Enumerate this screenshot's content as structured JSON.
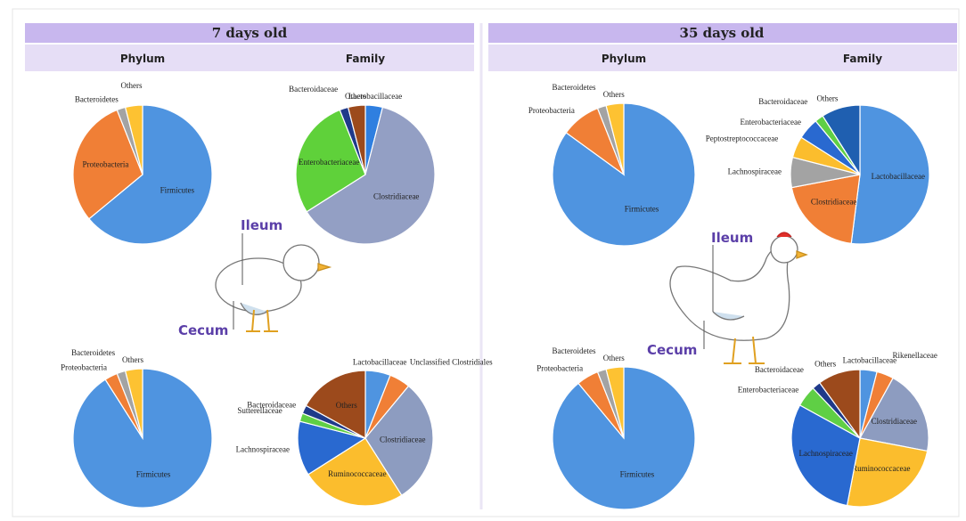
{
  "panels": [
    {
      "title": "7 days old",
      "columns": [
        "Phylum",
        "Family"
      ],
      "ileum": "Ileum",
      "cecum": "Cecum"
    },
    {
      "title": "35 days old",
      "columns": [
        "Phylum",
        "Family"
      ],
      "ileum": "Ileum",
      "cecum": "Cecum"
    }
  ],
  "chart_data": [
    {
      "type": "pie",
      "categories": [
        "Firmicutes",
        "Proteobacteria",
        "Bacteroidetes",
        "Others"
      ],
      "values": [
        64,
        30,
        2,
        4
      ],
      "colors": [
        "#4f94e0",
        "#f07f36",
        "#a3a3a3",
        "#fdc232"
      ]
    },
    {
      "type": "pie",
      "categories": [
        "Lactobacillaceae",
        "Clostridiaceae",
        "Enterobacteriaceae",
        "Bacteroidaceae",
        "Others"
      ],
      "values": [
        4,
        62,
        28,
        2,
        4
      ],
      "colors": [
        "#2f7fe0",
        "#939fc4",
        "#5fd13a",
        "#1f3a8a",
        "#9c4a1c"
      ]
    },
    {
      "type": "pie",
      "categories": [
        "Firmicutes",
        "Proteobacteria",
        "Bacteroidetes",
        "Others"
      ],
      "values": [
        91,
        3,
        2,
        4
      ],
      "colors": [
        "#4f94e0",
        "#f07f36",
        "#a3a3a3",
        "#fdc232"
      ]
    },
    {
      "type": "pie",
      "categories": [
        "Lactobacillaceae",
        "Unclassified Clostridiales",
        "Clostridiaceae",
        "Ruminococcaceae",
        "Lachnospiraceae",
        "Sutterellaceae",
        "Bacteroidaceae",
        "Others"
      ],
      "values": [
        6,
        5,
        30,
        25,
        13,
        2,
        2,
        17
      ],
      "colors": [
        "#4f94e0",
        "#f07f36",
        "#8d9cc0",
        "#fbbd2d",
        "#2969d0",
        "#5fcf45",
        "#1f3a8a",
        "#9c4a1c"
      ]
    },
    {
      "type": "pie",
      "categories": [
        "Firmicutes",
        "Proteobacteria",
        "Bacteroidetes",
        "Others"
      ],
      "values": [
        85,
        9,
        2,
        4
      ],
      "colors": [
        "#4f94e0",
        "#f07f36",
        "#a3a3a3",
        "#fdc232"
      ]
    },
    {
      "type": "pie",
      "categories": [
        "Lactobacillaceae",
        "Clostridiaceae",
        "Lachnospiraceae",
        "Peptostreptococcaceae",
        "Enterobacteriaceae",
        "Bacteroidaceae",
        "Others"
      ],
      "values": [
        52,
        20,
        7,
        5,
        5,
        2,
        9
      ],
      "colors": [
        "#4f94e0",
        "#f07f36",
        "#a3a3a3",
        "#fbbd2d",
        "#2969d0",
        "#5fcf45",
        "#1f5fb0"
      ]
    },
    {
      "type": "pie",
      "categories": [
        "Firmicutes",
        "Proteobacteria",
        "Bacteroidetes",
        "Others"
      ],
      "values": [
        89,
        5,
        2,
        4
      ],
      "colors": [
        "#4f94e0",
        "#f07f36",
        "#a3a3a3",
        "#fdc232"
      ]
    },
    {
      "type": "pie",
      "categories": [
        "Lactobacillaceae",
        "Rikenellaceae",
        "Clostridiaceae",
        "Ruminococcaceae",
        "Lachnospiraceae",
        "Enterobacteriaceae",
        "Bacteroidaceae",
        "Others"
      ],
      "values": [
        4,
        4,
        20,
        25,
        30,
        5,
        2,
        10
      ],
      "colors": [
        "#4f94e0",
        "#f07f36",
        "#8d9cc0",
        "#fbbd2d",
        "#2969d0",
        "#5fcf45",
        "#1f3a8a",
        "#9c4a1c"
      ]
    }
  ]
}
